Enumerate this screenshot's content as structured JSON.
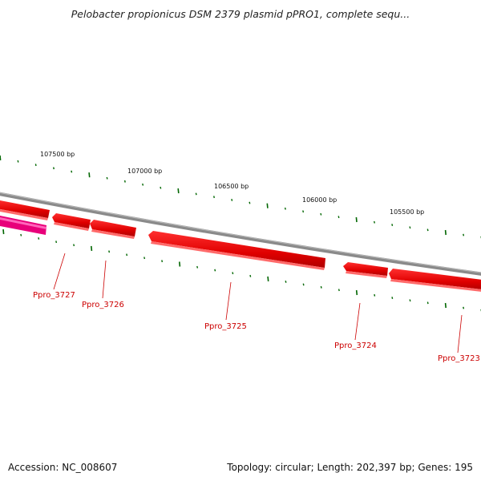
{
  "title": "Pelobacter propionicus DSM 2379 plasmid pPRO1, complete sequ...",
  "footer": {
    "accession": "Accession: NC_008607",
    "summary": "Topology: circular; Length: 202,397 bp; Genes: 195"
  },
  "colors": {
    "backbone": "#808080",
    "gene_forward": "#ee0000",
    "gene_reverse": "#e8007a",
    "tick": "#006600",
    "label": "#cc0000"
  },
  "ruler": {
    "labels": [
      "107500 bp",
      "107000 bp",
      "106500 bp",
      "106000 bp",
      "105500 bp"
    ]
  },
  "genes": [
    {
      "name": "Ppro_3727"
    },
    {
      "name": "Ppro_3726"
    },
    {
      "name": "Ppro_3725"
    },
    {
      "name": "Ppro_3724"
    },
    {
      "name": "Ppro_3723"
    }
  ]
}
